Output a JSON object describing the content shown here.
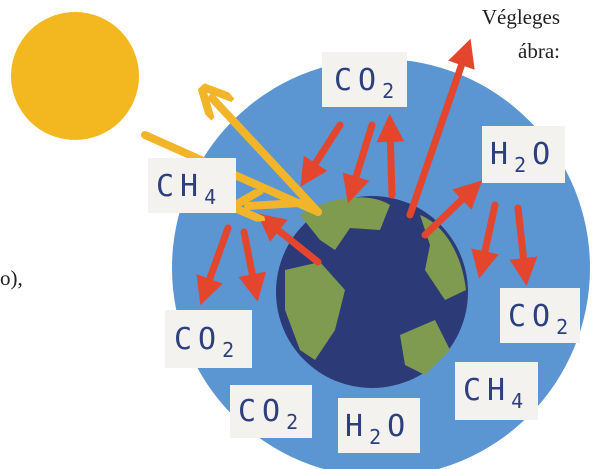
{
  "caption": [
    "Végleges",
    "ábra:"
  ],
  "fragment": "o),",
  "labels": [
    {
      "main": "CO",
      "sub": "2"
    },
    {
      "main": "H",
      "sub": "2",
      "tail": "O"
    },
    {
      "main": "CH",
      "sub": "4"
    },
    {
      "main": "CO",
      "sub": "2"
    },
    {
      "main": "CO",
      "sub": "2"
    },
    {
      "main": "CO",
      "sub": "2"
    },
    {
      "main": "H",
      "sub": "2",
      "tail": "O"
    },
    {
      "main": "CH",
      "sub": "4"
    }
  ]
}
